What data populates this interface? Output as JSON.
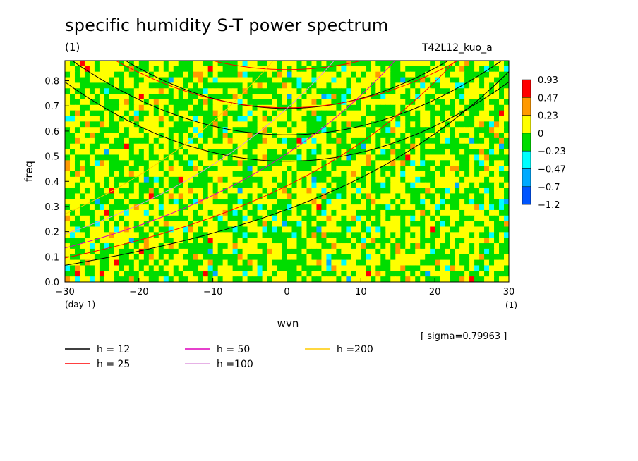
{
  "header": {
    "title": "specific humidity S-T power spectrum",
    "unit_note": "(1)",
    "run_name": "T42L12_kuo_a"
  },
  "footer": {
    "sigma": "[ sigma=0.79963 ]"
  },
  "chart_data": {
    "type": "heatmap",
    "title": "specific humidity S-T power spectrum",
    "xlabel": "wvn",
    "ylabel": "freq",
    "x_unit": "(1)",
    "y_unit": "(day-1)",
    "xlim": [
      -30,
      30
    ],
    "ylim": [
      0,
      0.88
    ],
    "xticks": [
      -30,
      -20,
      -10,
      0,
      10,
      20,
      30
    ],
    "yticks": [
      0.0,
      0.1,
      0.2,
      0.3,
      0.4,
      0.5,
      0.6,
      0.7,
      0.8
    ],
    "colorbar": {
      "labels": [
        "0.93",
        "0.47",
        "0.23",
        "0",
        "−0.23",
        "−0.47",
        "−0.7",
        "−1.2"
      ],
      "colors": [
        "#ff0000",
        "#ff9900",
        "#ffff00",
        "#00dd00",
        "#00ffff",
        "#00aaff",
        "#0055ff"
      ]
    },
    "curves": [
      {
        "name": "h = 12",
        "color": "#000000"
      },
      {
        "name": "h = 25",
        "color": "#ff0000"
      },
      {
        "name": "h = 50",
        "color": "#dd00bb"
      },
      {
        "name": "h =100",
        "color": "#dd99dd"
      },
      {
        "name": "h =200",
        "color": "#ffcc00"
      }
    ]
  }
}
